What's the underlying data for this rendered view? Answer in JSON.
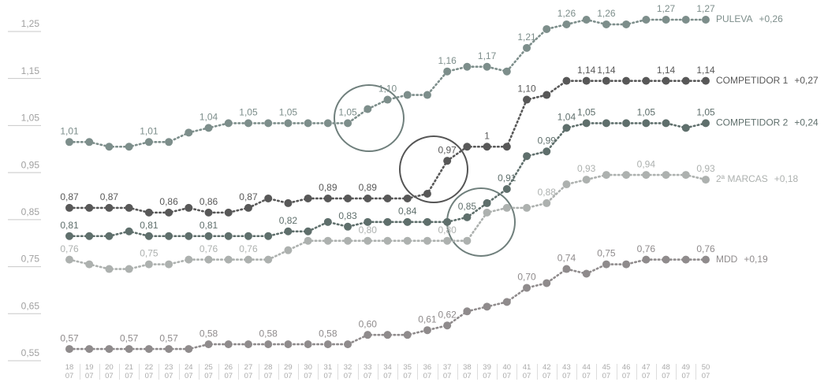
{
  "chart_data": {
    "type": "line",
    "categories": [
      "18 07",
      "19 07",
      "20 07",
      "21 07",
      "22 07",
      "23 07",
      "24 07",
      "25 07",
      "26 07",
      "27 07",
      "28 07",
      "29 07",
      "30 07",
      "31 07",
      "32 07",
      "33 07",
      "34 07",
      "35 07",
      "36 07",
      "37 07",
      "38 07",
      "39 07",
      "40 07",
      "41 07",
      "42 07",
      "43 07",
      "44 07",
      "45 07",
      "46 07",
      "47 07",
      "48 07",
      "49 07",
      "50 07"
    ],
    "ylim": [
      0.54,
      1.27
    ],
    "yticks": [
      {
        "value": 0.55,
        "label": "0,55"
      },
      {
        "value": 0.65,
        "label": "0,65"
      },
      {
        "value": 0.75,
        "label": "0,75"
      },
      {
        "value": 0.85,
        "label": "0,85"
      },
      {
        "value": 0.95,
        "label": "0,95"
      },
      {
        "value": 1.05,
        "label": "1,05"
      },
      {
        "value": 1.15,
        "label": "1,15"
      },
      {
        "value": 1.25,
        "label": "1,25"
      }
    ],
    "series": [
      {
        "name": "PULEVA",
        "change": "+0,26",
        "color": "#7d8e8b",
        "values": [
          1.01,
          1.01,
          1.0,
          1.0,
          1.01,
          1.01,
          1.03,
          1.04,
          1.05,
          1.05,
          1.05,
          1.05,
          1.05,
          1.05,
          1.05,
          1.08,
          1.1,
          1.11,
          1.11,
          1.16,
          1.17,
          1.17,
          1.16,
          1.21,
          1.25,
          1.26,
          1.27,
          1.26,
          1.26,
          1.27,
          1.27,
          1.27,
          1.27
        ],
        "value_labels": [
          "1,01",
          null,
          null,
          null,
          "1,01",
          null,
          null,
          "1,04",
          null,
          "1,05",
          null,
          "1,05",
          null,
          null,
          "1,05",
          null,
          "1,10",
          null,
          null,
          "1,16",
          null,
          "1,17",
          null,
          "1,21",
          null,
          "1,26",
          null,
          "1,26",
          null,
          null,
          "1,27",
          null,
          "1,27"
        ]
      },
      {
        "name": "COMPETIDOR 1",
        "change": "+0,27",
        "color": "#585858",
        "values": [
          0.87,
          0.87,
          0.87,
          0.87,
          0.86,
          0.86,
          0.87,
          0.86,
          0.86,
          0.87,
          0.89,
          0.88,
          0.89,
          0.89,
          0.89,
          0.89,
          0.89,
          0.89,
          0.9,
          0.97,
          1.0,
          1.0,
          1.0,
          1.1,
          1.11,
          1.14,
          1.14,
          1.14,
          1.14,
          1.14,
          1.14,
          1.14,
          1.14
        ],
        "value_labels": [
          "0,87",
          null,
          "0,87",
          null,
          null,
          "0,86",
          null,
          "0,86",
          null,
          "0,87",
          null,
          null,
          null,
          "0,89",
          null,
          "0,89",
          null,
          null,
          null,
          "0,97",
          null,
          "1",
          null,
          "1,10",
          null,
          null,
          "1,14",
          "1,14",
          null,
          null,
          "1,14",
          null,
          "1,14"
        ]
      },
      {
        "name": "COMPETIDOR 2",
        "change": "+0,24",
        "color": "#5f6f6c",
        "values": [
          0.81,
          0.81,
          0.81,
          0.82,
          0.81,
          0.81,
          0.81,
          0.81,
          0.81,
          0.81,
          0.81,
          0.82,
          0.82,
          0.84,
          0.83,
          0.84,
          0.84,
          0.84,
          0.84,
          0.84,
          0.85,
          0.88,
          0.91,
          0.98,
          0.99,
          1.04,
          1.05,
          1.05,
          1.05,
          1.05,
          1.05,
          1.04,
          1.05
        ],
        "value_labels": [
          "0,81",
          null,
          null,
          null,
          "0,81",
          null,
          null,
          "0,81",
          null,
          null,
          null,
          "0,82",
          null,
          null,
          "0,83",
          null,
          null,
          "0,84",
          null,
          null,
          "0,85",
          null,
          "0,91",
          null,
          "0,99",
          "1,04",
          "1,05",
          null,
          null,
          "1,05",
          null,
          null,
          "1,05"
        ]
      },
      {
        "name": "2ª MARCAS",
        "change": "+0,18",
        "color": "#adb1af",
        "values": [
          0.76,
          0.75,
          0.74,
          0.74,
          0.75,
          0.75,
          0.76,
          0.76,
          0.76,
          0.76,
          0.76,
          0.78,
          0.8,
          0.8,
          0.8,
          0.8,
          0.8,
          0.8,
          0.8,
          0.8,
          0.8,
          0.86,
          0.87,
          0.87,
          0.88,
          0.92,
          0.93,
          0.94,
          0.94,
          0.94,
          0.94,
          0.94,
          0.93
        ],
        "value_labels": [
          "0,76",
          null,
          null,
          null,
          "0,75",
          null,
          null,
          "0,76",
          null,
          "0,76",
          null,
          null,
          null,
          null,
          null,
          "0,80",
          null,
          null,
          null,
          "0,80",
          null,
          null,
          null,
          null,
          "0,88",
          null,
          "0,93",
          null,
          null,
          "0,94",
          null,
          null,
          "0,93"
        ]
      },
      {
        "name": "MDD",
        "change": "+0,19",
        "color": "#8f8b8c",
        "values": [
          0.57,
          0.57,
          0.57,
          0.57,
          0.57,
          0.57,
          0.57,
          0.58,
          0.58,
          0.58,
          0.58,
          0.58,
          0.58,
          0.58,
          0.58,
          0.6,
          0.6,
          0.6,
          0.61,
          0.62,
          0.65,
          0.66,
          0.67,
          0.7,
          0.71,
          0.74,
          0.73,
          0.75,
          0.75,
          0.76,
          0.76,
          0.76,
          0.76
        ],
        "value_labels": [
          "0,57",
          null,
          null,
          "0,57",
          null,
          "0,57",
          null,
          "0,58",
          null,
          null,
          "0,58",
          null,
          null,
          "0,58",
          null,
          "0,60",
          null,
          null,
          "0,61",
          "0,62",
          null,
          null,
          null,
          "0,70",
          null,
          "0,74",
          null,
          "0,75",
          null,
          "0,76",
          null,
          null,
          "0,76"
        ]
      }
    ]
  }
}
